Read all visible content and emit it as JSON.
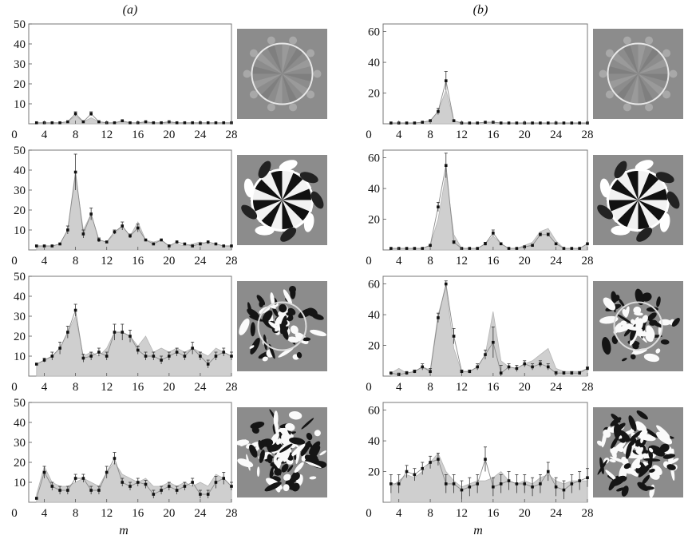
{
  "column_labels": [
    "(a)",
    "(b)"
  ],
  "chart_data": [
    {
      "type": "area",
      "panel": "a-1",
      "xlabel": "",
      "ylabel": "",
      "xlim": [
        2,
        28
      ],
      "ylim": [
        0,
        50
      ],
      "xticks": [
        4,
        8,
        12,
        16,
        20,
        24,
        28
      ],
      "xtick_labels": [
        "4",
        "8",
        "12",
        "16",
        "20",
        "24",
        "28"
      ],
      "yticks": [
        10,
        20,
        30,
        40,
        50
      ],
      "ytick_labels": [
        "10",
        "20",
        "30",
        "40",
        "50"
      ],
      "y_zero_label": "0",
      "x": [
        3,
        4,
        5,
        6,
        7,
        8,
        9,
        10,
        11,
        12,
        13,
        14,
        15,
        16,
        17,
        18,
        19,
        20,
        21,
        22,
        23,
        24,
        25,
        26,
        27,
        28
      ],
      "series": [
        {
          "role": "shade",
          "values": [
            0.5,
            0.5,
            0.5,
            0.5,
            1,
            4,
            1,
            3,
            1,
            0.5,
            0.5,
            1,
            0.5,
            0.5,
            0.5,
            0.5,
            0.5,
            0.5,
            0.5,
            0.5,
            0.5,
            0.5,
            0.5,
            0.5,
            0.5,
            0.5
          ]
        },
        {
          "role": "mean",
          "values": [
            0.5,
            0.5,
            0.5,
            0.5,
            1,
            5,
            1,
            5,
            1,
            0.5,
            0.5,
            1.5,
            0.5,
            0.5,
            1,
            0.5,
            0.5,
            1,
            0.5,
            0.5,
            0.5,
            0.5,
            0.5,
            0.5,
            0.5,
            0.5
          ],
          "errors": [
            0,
            0,
            0,
            0,
            0,
            1,
            0,
            1,
            0,
            0,
            0,
            0,
            0,
            0,
            0,
            0,
            0,
            0,
            0,
            0,
            0,
            0,
            0,
            0,
            0,
            0
          ]
        }
      ]
    },
    {
      "type": "area",
      "panel": "a-2",
      "xlabel": "",
      "ylabel": "",
      "xlim": [
        2,
        28
      ],
      "ylim": [
        0,
        50
      ],
      "xticks": [
        4,
        8,
        12,
        16,
        20,
        24,
        28
      ],
      "xtick_labels": [
        "4",
        "8",
        "12",
        "16",
        "20",
        "24",
        "28"
      ],
      "yticks": [
        10,
        20,
        30,
        40,
        50
      ],
      "ytick_labels": [
        "10",
        "20",
        "30",
        "40",
        "50"
      ],
      "y_zero_label": "0",
      "x": [
        3,
        4,
        5,
        6,
        7,
        8,
        9,
        10,
        11,
        12,
        13,
        14,
        15,
        16,
        17,
        18,
        19,
        20,
        21,
        22,
        23,
        24,
        25,
        26,
        27,
        28
      ],
      "series": [
        {
          "role": "shade",
          "values": [
            2,
            2,
            2,
            3,
            10,
            37,
            10,
            18,
            5,
            4,
            8,
            12,
            7,
            14,
            5,
            4,
            5,
            2,
            3,
            2,
            3,
            4,
            3,
            3,
            2,
            2
          ]
        },
        {
          "role": "mean",
          "values": [
            2,
            2,
            2,
            3,
            10,
            39,
            8,
            18,
            5,
            4,
            9,
            12,
            7,
            11,
            5,
            3,
            5,
            2,
            4,
            3,
            2,
            3,
            4,
            3,
            2,
            2
          ],
          "errors": [
            0,
            0,
            0,
            0,
            2,
            9,
            2,
            3,
            1,
            0,
            1,
            2,
            1,
            2,
            0,
            0,
            0,
            0,
            0,
            0,
            0,
            0,
            0,
            0,
            0,
            0
          ]
        }
      ]
    },
    {
      "type": "area",
      "panel": "a-3",
      "xlabel": "",
      "ylabel": "",
      "xlim": [
        2,
        28
      ],
      "ylim": [
        0,
        50
      ],
      "xticks": [
        4,
        8,
        12,
        16,
        20,
        24,
        28
      ],
      "xtick_labels": [
        "4",
        "8",
        "12",
        "16",
        "20",
        "24",
        "28"
      ],
      "yticks": [
        10,
        20,
        30,
        40,
        50
      ],
      "ytick_labels": [
        "10",
        "20",
        "30",
        "40",
        "50"
      ],
      "y_zero_label": "0",
      "x": [
        3,
        4,
        5,
        6,
        7,
        8,
        9,
        10,
        11,
        12,
        13,
        14,
        15,
        16,
        17,
        18,
        19,
        20,
        21,
        22,
        23,
        24,
        25,
        26,
        27,
        28
      ],
      "series": [
        {
          "role": "shade",
          "values": [
            6,
            8,
            10,
            14,
            22,
            30,
            10,
            12,
            10,
            14,
            22,
            22,
            20,
            15,
            20,
            12,
            14,
            12,
            14,
            12,
            14,
            12,
            10,
            14,
            12,
            10
          ]
        },
        {
          "role": "mean",
          "values": [
            6,
            8,
            10,
            14,
            22,
            33,
            9,
            10,
            12,
            10,
            22,
            22,
            20,
            13,
            10,
            10,
            8,
            10,
            12,
            10,
            14,
            10,
            6,
            10,
            12,
            10
          ],
          "errors": [
            0,
            1,
            2,
            3,
            3,
            3,
            2,
            2,
            2,
            2,
            4,
            4,
            3,
            2,
            2,
            2,
            2,
            2,
            2,
            2,
            3,
            2,
            2,
            2,
            2,
            2
          ]
        }
      ]
    },
    {
      "type": "area",
      "panel": "a-4",
      "xlabel": "m",
      "ylabel": "",
      "xlim": [
        2,
        28
      ],
      "ylim": [
        0,
        50
      ],
      "xticks": [
        4,
        8,
        12,
        16,
        20,
        24,
        28
      ],
      "xtick_labels": [
        "4",
        "8",
        "12",
        "16",
        "20",
        "24",
        "28"
      ],
      "yticks": [
        10,
        20,
        30,
        40,
        50
      ],
      "ytick_labels": [
        "10",
        "20",
        "30",
        "40",
        "50"
      ],
      "y_zero_label": "0",
      "x": [
        3,
        4,
        5,
        6,
        7,
        8,
        9,
        10,
        11,
        12,
        13,
        14,
        15,
        16,
        17,
        18,
        19,
        20,
        21,
        22,
        23,
        24,
        25,
        26,
        27,
        28
      ],
      "series": [
        {
          "role": "shade",
          "values": [
            4,
            18,
            10,
            8,
            8,
            10,
            12,
            10,
            8,
            15,
            20,
            14,
            12,
            10,
            12,
            8,
            8,
            10,
            8,
            10,
            8,
            10,
            8,
            14,
            12,
            8
          ]
        },
        {
          "role": "mean",
          "values": [
            2,
            15,
            8,
            6,
            6,
            12,
            12,
            6,
            6,
            15,
            22,
            10,
            8,
            10,
            9,
            4,
            6,
            8,
            6,
            8,
            10,
            4,
            4,
            10,
            12,
            8
          ],
          "errors": [
            0,
            3,
            2,
            2,
            2,
            2,
            2,
            2,
            2,
            3,
            3,
            2,
            2,
            2,
            2,
            2,
            2,
            2,
            2,
            2,
            2,
            2,
            2,
            3,
            3,
            2
          ]
        }
      ]
    },
    {
      "type": "area",
      "panel": "b-1",
      "xlabel": "",
      "ylabel": "",
      "xlim": [
        2,
        28
      ],
      "ylim": [
        0,
        65
      ],
      "xticks": [
        4,
        8,
        12,
        16,
        20,
        24,
        28
      ],
      "xtick_labels": [
        "4",
        "8",
        "12",
        "16",
        "20",
        "24",
        "28"
      ],
      "yticks": [
        20,
        40,
        60
      ],
      "ytick_labels": [
        "20",
        "40",
        "60"
      ],
      "y_zero_label": "0",
      "x": [
        3,
        4,
        5,
        6,
        7,
        8,
        9,
        10,
        11,
        12,
        13,
        14,
        15,
        16,
        17,
        18,
        19,
        20,
        21,
        22,
        23,
        24,
        25,
        26,
        27,
        28
      ],
      "series": [
        {
          "role": "shade",
          "values": [
            0.5,
            0.5,
            0.5,
            0.5,
            1,
            2,
            8,
            22,
            2,
            0.5,
            0.5,
            0.5,
            1,
            1,
            0.5,
            0.5,
            0.5,
            0.5,
            0.5,
            0.5,
            0.5,
            0.5,
            0.5,
            0.5,
            0.5,
            0.5
          ]
        },
        {
          "role": "mean",
          "values": [
            0.5,
            0.5,
            0.5,
            0.5,
            1,
            2,
            8,
            28,
            2,
            0.5,
            0.5,
            0.5,
            1,
            1,
            0.5,
            0.5,
            0.5,
            0.5,
            0.5,
            0.5,
            0.5,
            0.5,
            0.5,
            0.5,
            0.5,
            0.5
          ],
          "errors": [
            0,
            0,
            0,
            0,
            0,
            0,
            2,
            6,
            0,
            0,
            0,
            0,
            0,
            0,
            0,
            0,
            0,
            0,
            0,
            0,
            0,
            0,
            0,
            0,
            0,
            0
          ]
        }
      ]
    },
    {
      "type": "area",
      "panel": "b-2",
      "xlabel": "",
      "ylabel": "",
      "xlim": [
        2,
        28
      ],
      "ylim": [
        0,
        65
      ],
      "xticks": [
        4,
        8,
        12,
        16,
        20,
        24,
        28
      ],
      "xtick_labels": [
        "4",
        "8",
        "12",
        "16",
        "20",
        "24",
        "28"
      ],
      "yticks": [
        20,
        40,
        60
      ],
      "ytick_labels": [
        "20",
        "40",
        "60"
      ],
      "y_zero_label": "0",
      "x": [
        3,
        4,
        5,
        6,
        7,
        8,
        9,
        10,
        11,
        12,
        13,
        14,
        15,
        16,
        17,
        18,
        19,
        20,
        21,
        22,
        23,
        24,
        25,
        26,
        27,
        28
      ],
      "series": [
        {
          "role": "shade",
          "values": [
            1,
            1,
            1,
            1,
            1,
            3,
            20,
            50,
            10,
            1,
            1,
            1,
            4,
            9,
            4,
            1,
            1,
            3,
            5,
            12,
            14,
            6,
            1,
            1,
            1,
            4
          ]
        },
        {
          "role": "mean",
          "values": [
            1,
            1,
            1,
            1,
            1,
            3,
            28,
            55,
            5,
            1,
            1,
            1,
            4,
            11,
            4,
            1,
            1,
            2,
            3,
            10,
            10,
            4,
            1,
            1,
            1,
            4
          ],
          "errors": [
            0,
            0,
            0,
            0,
            0,
            0,
            3,
            8,
            1,
            0,
            0,
            0,
            1,
            2,
            0,
            0,
            0,
            0,
            0,
            1,
            1,
            0,
            0,
            0,
            0,
            0
          ]
        }
      ]
    },
    {
      "type": "area",
      "panel": "b-3",
      "xlabel": "",
      "ylabel": "",
      "xlim": [
        2,
        28
      ],
      "ylim": [
        0,
        65
      ],
      "xticks": [
        4,
        8,
        12,
        16,
        20,
        24,
        28
      ],
      "xtick_labels": [
        "4",
        "8",
        "12",
        "16",
        "20",
        "24",
        "28"
      ],
      "yticks": [
        20,
        40,
        60
      ],
      "ytick_labels": [
        "20",
        "40",
        "60"
      ],
      "y_zero_label": "0",
      "x": [
        3,
        4,
        5,
        6,
        7,
        8,
        9,
        10,
        11,
        12,
        13,
        14,
        15,
        16,
        17,
        18,
        19,
        20,
        21,
        22,
        23,
        24,
        25,
        26,
        27,
        28
      ],
      "series": [
        {
          "role": "shade",
          "values": [
            2,
            5,
            2,
            3,
            6,
            4,
            40,
            58,
            18,
            3,
            3,
            6,
            14,
            42,
            10,
            6,
            5,
            8,
            10,
            14,
            18,
            5,
            3,
            3,
            3,
            5
          ]
        },
        {
          "role": "mean",
          "values": [
            2,
            1,
            2,
            3,
            6,
            3,
            38,
            60,
            26,
            3,
            3,
            6,
            14,
            22,
            2,
            6,
            5,
            8,
            6,
            8,
            6,
            2,
            2,
            2,
            2,
            5
          ],
          "errors": [
            0,
            1,
            1,
            1,
            2,
            2,
            3,
            2,
            5,
            1,
            1,
            2,
            3,
            10,
            5,
            2,
            2,
            2,
            2,
            2,
            2,
            1,
            1,
            1,
            1,
            1
          ]
        }
      ]
    },
    {
      "type": "area",
      "panel": "b-4",
      "xlabel": "m",
      "ylabel": "",
      "xlim": [
        2,
        28
      ],
      "ylim": [
        0,
        65
      ],
      "xticks": [
        4,
        8,
        12,
        16,
        20,
        24,
        28
      ],
      "xtick_labels": [
        "4",
        "8",
        "12",
        "16",
        "20",
        "24",
        "28"
      ],
      "yticks": [
        20,
        40,
        60
      ],
      "ytick_labels": [
        "20",
        "40",
        "60"
      ],
      "y_zero_label": "0",
      "x": [
        3,
        4,
        5,
        6,
        7,
        8,
        9,
        10,
        11,
        12,
        13,
        14,
        15,
        16,
        17,
        18,
        19,
        20,
        21,
        22,
        23,
        24,
        25,
        26,
        27,
        28
      ],
      "series": [
        {
          "role": "shade",
          "values": [
            10,
            14,
            18,
            16,
            20,
            26,
            32,
            20,
            14,
            10,
            12,
            14,
            14,
            16,
            20,
            14,
            12,
            14,
            12,
            16,
            18,
            14,
            12,
            14,
            14,
            14
          ]
        },
        {
          "role": "mean",
          "values": [
            12,
            12,
            20,
            18,
            22,
            26,
            28,
            12,
            12,
            8,
            10,
            12,
            28,
            10,
            12,
            14,
            12,
            12,
            10,
            12,
            20,
            10,
            8,
            12,
            14,
            16
          ],
          "errors": [
            6,
            6,
            4,
            4,
            4,
            4,
            4,
            6,
            6,
            6,
            6,
            6,
            8,
            6,
            6,
            6,
            6,
            6,
            6,
            6,
            6,
            6,
            6,
            6,
            6,
            6
          ]
        }
      ]
    }
  ],
  "thumbnails": [
    {
      "panel": "a-1",
      "icon": "ring-pattern-faint"
    },
    {
      "panel": "a-2",
      "icon": "ring-pattern-star"
    },
    {
      "panel": "a-3",
      "icon": "turbulent-ring"
    },
    {
      "panel": "a-4",
      "icon": "turbulent-blob"
    },
    {
      "panel": "b-1",
      "icon": "ring-pattern-faint"
    },
    {
      "panel": "b-2",
      "icon": "ring-pattern-star"
    },
    {
      "panel": "b-3",
      "icon": "turbulent-ring"
    },
    {
      "panel": "b-4",
      "icon": "turbulent-blob"
    }
  ]
}
